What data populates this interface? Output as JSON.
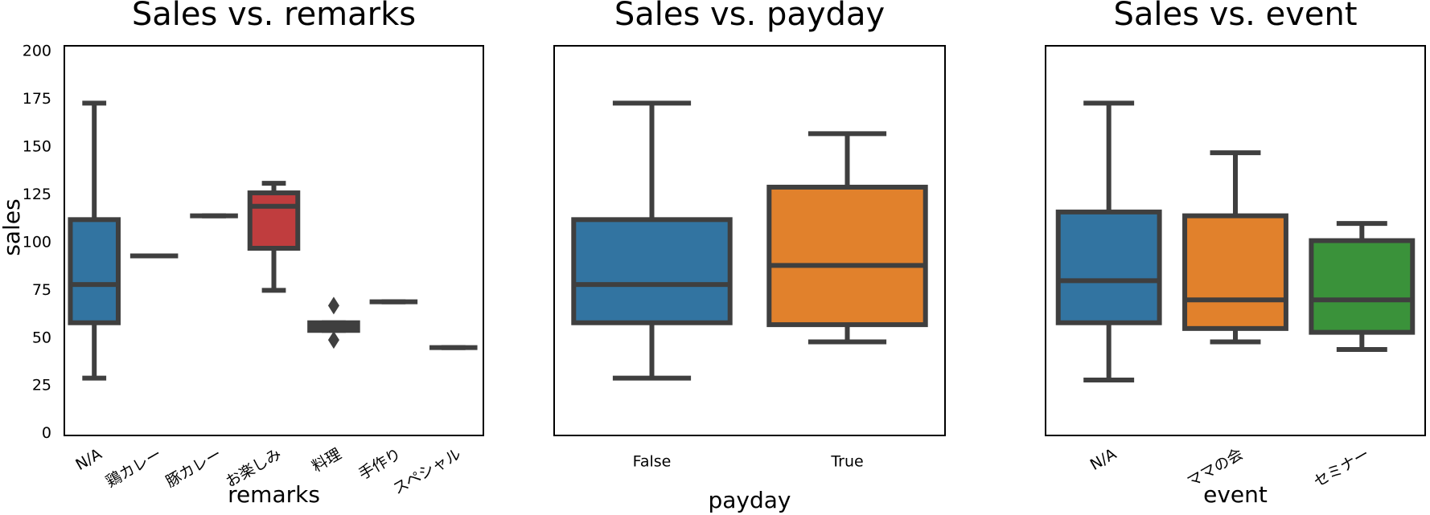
{
  "chart_data": [
    {
      "type": "box",
      "title": "Sales vs. remarks",
      "xlabel": "remarks",
      "ylabel": "sales",
      "categories": [
        "N/A",
        "鶏カレー",
        "豚カレー",
        "お楽しみ",
        "料理",
        "手作り",
        "スペシャル"
      ],
      "colors": [
        "#3274a1",
        "#e1812c",
        "#3a923a",
        "#c03d3e",
        "#9372b2",
        "#845b53",
        "#d684bd"
      ],
      "boxes": [
        {
          "whislo": 29,
          "q1": 58,
          "med": 78,
          "q3": 112,
          "whishi": 173
        },
        {
          "whislo": 93,
          "q1": 93,
          "med": 93,
          "q3": 93,
          "whishi": 93
        },
        {
          "whislo": 114,
          "q1": 114,
          "med": 114,
          "q3": 114,
          "whishi": 114
        },
        {
          "whislo": 75,
          "q1": 97,
          "med": 119,
          "q3": 126,
          "whishi": 131
        },
        {
          "whislo": 54,
          "q1": 54,
          "med": 56,
          "q3": 58,
          "whishi": 58,
          "fliers": [
            67,
            49
          ]
        },
        {
          "whislo": 69,
          "q1": 69,
          "med": 69,
          "q3": 69,
          "whishi": 69
        },
        {
          "whislo": 45,
          "q1": 45,
          "med": 45,
          "q3": 45,
          "whishi": 45
        }
      ],
      "ylim": [
        -1,
        203
      ],
      "yticks": [
        0,
        25,
        50,
        75,
        100,
        125,
        150,
        175,
        200
      ]
    },
    {
      "type": "box",
      "title": "Sales vs. payday",
      "xlabel": "payday",
      "categories": [
        "False",
        "True"
      ],
      "colors": [
        "#3274a1",
        "#e1812c"
      ],
      "boxes": [
        {
          "whislo": 29,
          "q1": 58,
          "med": 78,
          "q3": 112,
          "whishi": 173
        },
        {
          "whislo": 48,
          "q1": 57,
          "med": 88,
          "q3": 129,
          "whishi": 157
        }
      ],
      "ylim": [
        -1,
        203
      ]
    },
    {
      "type": "box",
      "title": "Sales vs. event",
      "xlabel": "event",
      "categories": [
        "N/A",
        "ママの会",
        "セミナー"
      ],
      "colors": [
        "#3274a1",
        "#e1812c",
        "#3a923a"
      ],
      "boxes": [
        {
          "whislo": 28,
          "q1": 58,
          "med": 80,
          "q3": 116,
          "whishi": 173
        },
        {
          "whislo": 48,
          "q1": 55,
          "med": 70,
          "q3": 114,
          "whishi": 147
        },
        {
          "whislo": 44,
          "q1": 53,
          "med": 70,
          "q3": 101,
          "whishi": 110
        }
      ],
      "ylim": [
        -1,
        203
      ]
    }
  ]
}
